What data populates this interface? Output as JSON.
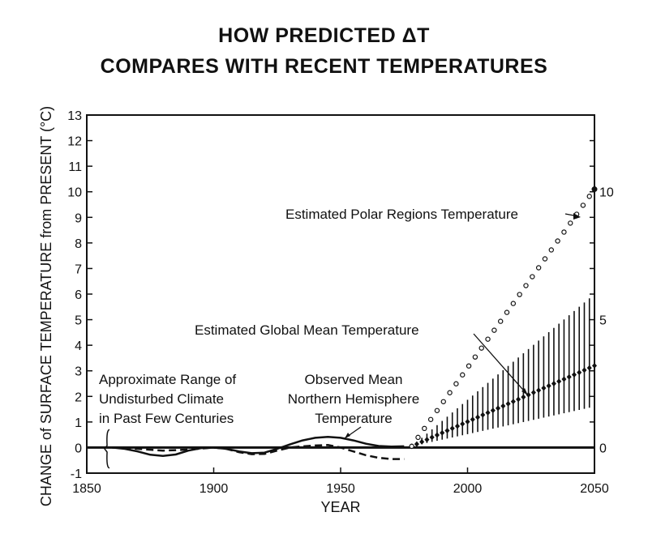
{
  "chart_data": {
    "type": "line",
    "title": "HOW PREDICTED ΔT",
    "subtitle": "COMPARES WITH RECENT TEMPERATURES",
    "xlabel": "YEAR",
    "ylabel": "CHANGE of SURFACE TEMPERATURE from PRESENT (°C)",
    "xlim": [
      1850,
      2050
    ],
    "ylim": [
      -1,
      13
    ],
    "x_ticks": [
      "1850",
      "1900",
      "1950",
      "2000",
      "2050"
    ],
    "y_ticks": [
      "-1",
      "0",
      "1",
      "2",
      "3",
      "4",
      "5",
      "6",
      "7",
      "8",
      "9",
      "10",
      "11",
      "12",
      "13"
    ],
    "right_ticks": [
      "0",
      "5",
      "10"
    ],
    "right_tick_values": [
      0,
      5,
      10
    ],
    "series": [
      {
        "name": "Observed Mean Northern Hemisphere Temperature",
        "style": "solid",
        "x": [
          1860,
          1865,
          1870,
          1875,
          1880,
          1885,
          1890,
          1895,
          1900,
          1905,
          1910,
          1915,
          1920,
          1925,
          1930,
          1935,
          1940,
          1945,
          1950,
          1955,
          1960,
          1965,
          1970,
          1975
        ],
        "values": [
          0.0,
          -0.05,
          -0.15,
          -0.28,
          -0.33,
          -0.27,
          -0.12,
          -0.02,
          0.0,
          -0.05,
          -0.15,
          -0.22,
          -0.2,
          -0.05,
          0.12,
          0.28,
          0.38,
          0.42,
          0.38,
          0.28,
          0.15,
          0.06,
          0.04,
          0.05
        ]
      },
      {
        "name": "Observed (dashed)",
        "style": "dashed",
        "x": [
          1860,
          1870,
          1880,
          1890,
          1900,
          1905,
          1910,
          1915,
          1920,
          1925,
          1930,
          1935,
          1940,
          1945,
          1950,
          1955,
          1960,
          1965,
          1970,
          1975
        ],
        "values": [
          0.0,
          -0.05,
          -0.12,
          -0.08,
          0.0,
          -0.05,
          -0.18,
          -0.26,
          -0.25,
          -0.12,
          0.0,
          0.05,
          0.08,
          0.1,
          0.0,
          -0.15,
          -0.3,
          -0.4,
          -0.45,
          -0.45
        ]
      },
      {
        "name": "Estimated Global Mean Temperature",
        "style": "diamonds",
        "x": [
          1978,
          2050
        ],
        "values": [
          0.05,
          3.2
        ],
        "range_upper": [
          0.05,
          6.0
        ],
        "range_lower": [
          0.05,
          1.6
        ]
      },
      {
        "name": "Estimated Polar Regions Temperature",
        "style": "open-circles",
        "x": [
          1978,
          2050
        ],
        "values": [
          0.05,
          10.1
        ]
      }
    ],
    "baseline": {
      "name": "Present",
      "value": 0
    },
    "annotations": [
      {
        "lines": [
          "Approximate Range of",
          "Undisturbed Climate",
          "in Past Few Centuries"
        ],
        "range": [
          -0.8,
          0.7
        ],
        "year": 1858
      },
      {
        "lines": [
          "Observed Mean",
          "Northern Hemisphere",
          "Temperature"
        ]
      },
      {
        "lines": [
          "Estimated Global Mean Temperature"
        ]
      },
      {
        "lines": [
          "Estimated Polar Regions Temperature"
        ]
      }
    ]
  }
}
